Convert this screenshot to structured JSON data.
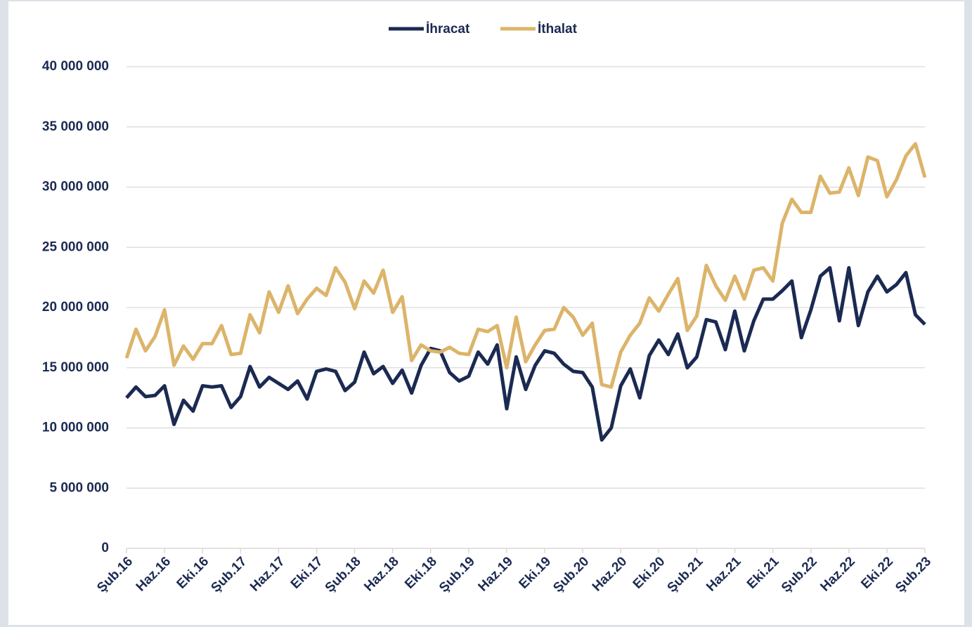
{
  "chart_data": {
    "type": "line",
    "categories": [
      "Şub.16",
      null,
      null,
      null,
      "Haz.16",
      null,
      null,
      null,
      "Eki.16",
      null,
      null,
      null,
      "Şub.17",
      null,
      null,
      null,
      "Haz.17",
      null,
      null,
      null,
      "Eki.17",
      null,
      null,
      null,
      "Şub.18",
      null,
      null,
      null,
      "Haz.18",
      null,
      null,
      null,
      "Eki.18",
      null,
      null,
      null,
      "Şub.19",
      null,
      null,
      null,
      "Haz.19",
      null,
      null,
      null,
      "Eki.19",
      null,
      null,
      null,
      "Şub.20",
      null,
      null,
      null,
      "Haz.20",
      null,
      null,
      null,
      "Eki.20",
      null,
      null,
      null,
      "Şub.21",
      null,
      null,
      null,
      "Haz.21",
      null,
      null,
      null,
      "Eki.21",
      null,
      null,
      null,
      "Şub.22",
      null,
      null,
      null,
      "Haz.22",
      null,
      null,
      null,
      "Eki.22",
      null,
      null,
      null,
      "Şub.23"
    ],
    "series": [
      {
        "name": "İhracat",
        "color": "#1b2a52",
        "values": [
          12500000,
          13400000,
          12600000,
          12700000,
          13500000,
          10300000,
          12300000,
          11400000,
          13500000,
          13400000,
          13500000,
          11700000,
          12600000,
          15100000,
          13400000,
          14200000,
          13700000,
          13200000,
          13900000,
          12400000,
          14700000,
          14900000,
          14700000,
          13100000,
          13800000,
          16300000,
          14500000,
          15100000,
          13700000,
          14800000,
          12900000,
          15200000,
          16600000,
          16400000,
          14600000,
          13900000,
          14300000,
          16300000,
          15300000,
          16900000,
          11600000,
          15900000,
          13200000,
          15200000,
          16400000,
          16200000,
          15300000,
          14700000,
          14600000,
          13400000,
          9000000,
          10000000,
          13500000,
          14900000,
          12500000,
          16000000,
          17300000,
          16100000,
          17800000,
          15000000,
          15900000,
          19000000,
          18800000,
          16500000,
          19700000,
          16400000,
          18900000,
          20700000,
          20700000,
          21400000,
          22200000,
          17500000,
          19800000,
          22600000,
          23300000,
          18900000,
          23300000,
          18500000,
          21300000,
          22600000,
          21300000,
          21900000,
          22900000,
          19400000,
          18600000
        ]
      },
      {
        "name": "İthalat",
        "color": "#dcb46a",
        "values": [
          15800000,
          18200000,
          16400000,
          17600000,
          19800000,
          15200000,
          16800000,
          15700000,
          17000000,
          17000000,
          18500000,
          16100000,
          16200000,
          19400000,
          17900000,
          21300000,
          19600000,
          21800000,
          19500000,
          20700000,
          21600000,
          21000000,
          23300000,
          22100000,
          19900000,
          22200000,
          21200000,
          23100000,
          19600000,
          20900000,
          15600000,
          16900000,
          16400000,
          16300000,
          16700000,
          16200000,
          16100000,
          18200000,
          18000000,
          18500000,
          15000000,
          19200000,
          15500000,
          16900000,
          18100000,
          18200000,
          20000000,
          19200000,
          17700000,
          18700000,
          13600000,
          13400000,
          16300000,
          17700000,
          18700000,
          20800000,
          19700000,
          21100000,
          22400000,
          18100000,
          19300000,
          23500000,
          21800000,
          20600000,
          22600000,
          20700000,
          23100000,
          23300000,
          22200000,
          27000000,
          29000000,
          27900000,
          27900000,
          30900000,
          29500000,
          29600000,
          31600000,
          29300000,
          32500000,
          32200000,
          29200000,
          30600000,
          32600000,
          33600000,
          30800000
        ]
      }
    ],
    "ylim": [
      0,
      40000000
    ],
    "yticks": [
      0,
      {
        "value": 5000000,
        "label": "5 000 000"
      },
      {
        "value": 10000000,
        "label": "10 000 000"
      },
      {
        "value": 15000000,
        "label": "15 000 000"
      },
      {
        "value": 20000000,
        "label": "20 000 000"
      },
      {
        "value": 25000000,
        "label": "25 000 000"
      },
      {
        "value": 30000000,
        "label": "30 000 000"
      },
      {
        "value": 35000000,
        "label": "35 000 000"
      },
      {
        "value": 40000000,
        "label": "40 000 000"
      }
    ],
    "grid": true,
    "legend": "top"
  }
}
